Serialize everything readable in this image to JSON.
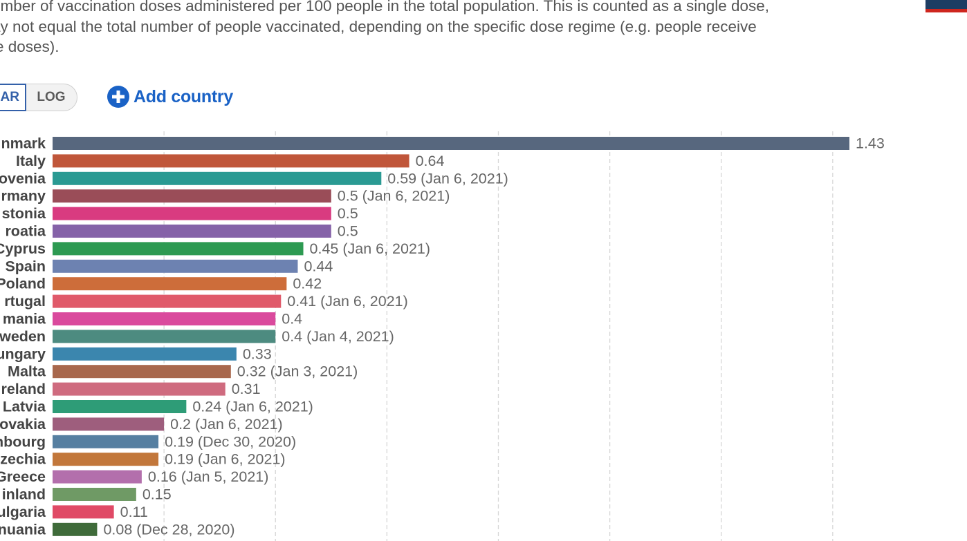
{
  "description": {
    "lines": [
      "umber of vaccination doses administered per 100 people in the total population. This is counted as a single dose,",
      "ay not equal the total number of people vaccinated, depending on the specific dose regime (e.g. people receive",
      "le doses)."
    ]
  },
  "controls": {
    "linear_label": "AR",
    "log_label": "LOG",
    "add_country_label": "Add country",
    "add_icon": "plus-circle-icon"
  },
  "colors": {
    "accent": "#1a62c6",
    "toggle_active": "#3360a9",
    "grid": "#d6d6d6"
  },
  "chart_data": {
    "type": "bar",
    "orientation": "horizontal",
    "xlim": [
      0,
      1.43
    ],
    "grid": true,
    "gridline_values": [
      0.2,
      0.4,
      0.6,
      0.8,
      1.0,
      1.2,
      1.4
    ],
    "bars": [
      {
        "label": "nmark",
        "value": 1.43,
        "value_label": "1.43",
        "color": "#57677e"
      },
      {
        "label": "Italy",
        "value": 0.64,
        "value_label": "0.64",
        "color": "#c0563a"
      },
      {
        "label": "ovenia",
        "value": 0.59,
        "value_label": "0.59 (Jan 6, 2021)",
        "color": "#2a9a93"
      },
      {
        "label": "rmany",
        "value": 0.5,
        "value_label": "0.5 (Jan 6, 2021)",
        "color": "#9a4d58"
      },
      {
        "label": "stonia",
        "value": 0.5,
        "value_label": "0.5",
        "color": "#d93b80"
      },
      {
        "label": "roatia",
        "value": 0.5,
        "value_label": "0.5",
        "color": "#8562a8"
      },
      {
        "label": "Cyprus",
        "value": 0.45,
        "value_label": "0.45 (Jan 6, 2021)",
        "color": "#2d9a52"
      },
      {
        "label": "Spain",
        "value": 0.44,
        "value_label": "0.44",
        "color": "#6d82b1"
      },
      {
        "label": "Poland",
        "value": 0.42,
        "value_label": "0.42",
        "color": "#cd6d3a"
      },
      {
        "label": "rtugal",
        "value": 0.41,
        "value_label": "0.41 (Jan 6, 2021)",
        "color": "#e05a6a"
      },
      {
        "label": "mania",
        "value": 0.4,
        "value_label": "0.4",
        "color": "#da4a9d"
      },
      {
        "label": "weden",
        "value": 0.4,
        "value_label": "0.4 (Jan 4, 2021)",
        "color": "#4d8b80"
      },
      {
        "label": "ungary",
        "value": 0.33,
        "value_label": "0.33",
        "color": "#3b86ae"
      },
      {
        "label": "Malta",
        "value": 0.32,
        "value_label": "0.32 (Jan 3, 2021)",
        "color": "#a8674c"
      },
      {
        "label": "reland",
        "value": 0.31,
        "value_label": "0.31",
        "color": "#cf6b7f"
      },
      {
        "label": "Latvia",
        "value": 0.24,
        "value_label": "0.24 (Jan 6, 2021)",
        "color": "#2e9c77"
      },
      {
        "label": "ovakia",
        "value": 0.2,
        "value_label": "0.2 (Jan 6, 2021)",
        "color": "#9e5e7d"
      },
      {
        "label": "nbourg",
        "value": 0.19,
        "value_label": "0.19 (Dec 30, 2020)",
        "color": "#567fa1"
      },
      {
        "label": "zechia",
        "value": 0.19,
        "value_label": "0.19 (Jan 6, 2021)",
        "color": "#c2773b"
      },
      {
        "label": "Greece",
        "value": 0.16,
        "value_label": "0.16 (Jan 5, 2021)",
        "color": "#b36fac"
      },
      {
        "label": "inland",
        "value": 0.15,
        "value_label": "0.15",
        "color": "#6f9a65"
      },
      {
        "label": "ulgaria",
        "value": 0.11,
        "value_label": "0.11",
        "color": "#e04a66"
      },
      {
        "label": "nuania",
        "value": 0.08,
        "value_label": "0.08 (Dec 28, 2020)",
        "color": "#3f6b3a"
      }
    ]
  }
}
